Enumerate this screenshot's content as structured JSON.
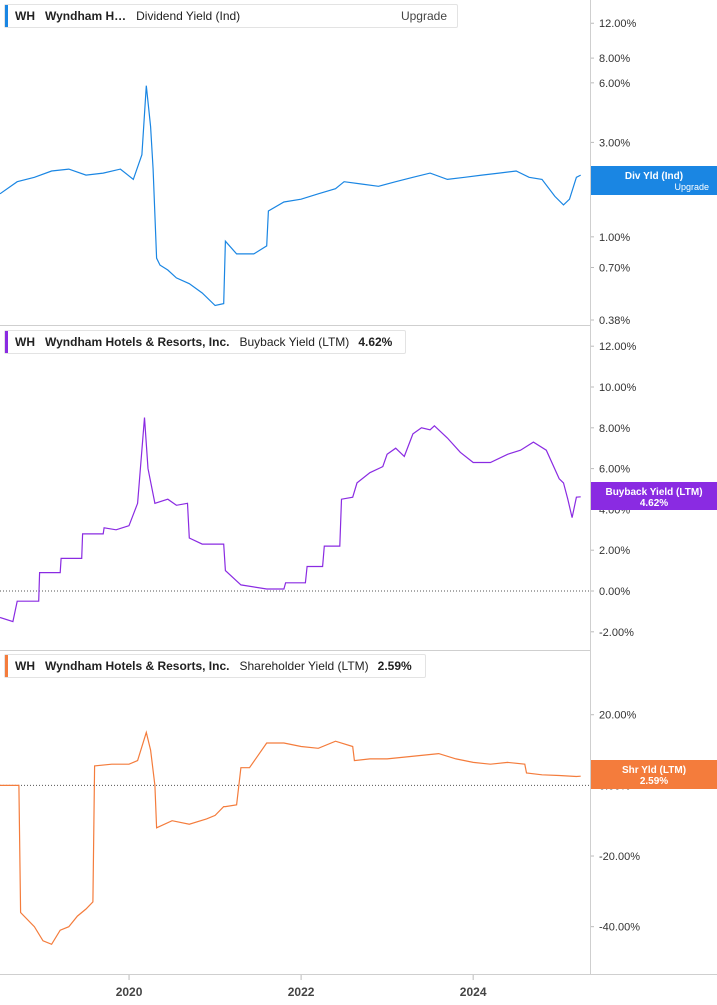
{
  "panels": [
    {
      "ticker": "WH",
      "name": "Wyndham H…",
      "metric": "Dividend Yield (Ind)",
      "value": "",
      "legend_action": "Upgrade",
      "color": "#1a86e3",
      "flag": {
        "label": "Div Yld (Ind)",
        "sub": "Upgrade"
      }
    },
    {
      "ticker": "WH",
      "name": "Wyndham Hotels & Resorts, Inc.",
      "metric": "Buyback Yield (LTM)",
      "value": "4.62%",
      "color": "#8a2be2",
      "flag": {
        "label": "Buyback Yield (LTM)",
        "sub": "4.62%"
      }
    },
    {
      "ticker": "WH",
      "name": "Wyndham Hotels & Resorts, Inc.",
      "metric": "Shareholder Yield (LTM)",
      "value": "2.59%",
      "color": "#f47c3c",
      "flag": {
        "label": "Shr Yld (LTM)",
        "sub": "2.59%"
      }
    }
  ],
  "chart_data": [
    {
      "type": "line",
      "title": "Dividend Yield (Ind)",
      "scale": "log",
      "y_ticks": [
        12,
        8,
        6,
        3,
        1,
        0.7,
        0.38
      ],
      "y_tick_labels": [
        "12.00%",
        "8.00%",
        "6.00%",
        "3.00%",
        "1.00%",
        "0.70%",
        "0.38%"
      ],
      "ylim": [
        0.38,
        14
      ],
      "xlim": [
        2018.5,
        2025.3
      ],
      "color": "#1a86e3",
      "series": [
        {
          "x": [
            2018.5,
            2018.7,
            2018.9,
            2019.1,
            2019.3,
            2019.5,
            2019.7,
            2019.9,
            2020.05,
            2020.15,
            2020.2,
            2020.25,
            2020.28,
            2020.32,
            2020.36,
            2020.45,
            2020.55,
            2020.7,
            2020.85,
            2021.0,
            2021.1,
            2021.12,
            2021.25,
            2021.45,
            2021.6,
            2021.62,
            2021.8,
            2022.0,
            2022.2,
            2022.4,
            2022.5,
            2022.7,
            2022.9,
            2023.1,
            2023.3,
            2023.5,
            2023.7,
            2023.9,
            2024.1,
            2024.3,
            2024.5,
            2024.65,
            2024.8,
            2024.95,
            2025.05,
            2025.12,
            2025.2,
            2025.25
          ],
          "y": [
            1.65,
            1.9,
            2.0,
            2.15,
            2.2,
            2.05,
            2.1,
            2.2,
            1.95,
            2.6,
            5.8,
            3.6,
            2.2,
            0.78,
            0.72,
            0.68,
            0.62,
            0.58,
            0.52,
            0.45,
            0.46,
            0.95,
            0.82,
            0.82,
            0.9,
            1.35,
            1.5,
            1.55,
            1.65,
            1.75,
            1.9,
            1.85,
            1.8,
            1.9,
            2.0,
            2.1,
            1.95,
            2.0,
            2.05,
            2.1,
            2.15,
            2.0,
            1.95,
            1.6,
            1.45,
            1.55,
            2.0,
            2.05
          ]
        }
      ]
    },
    {
      "type": "line",
      "title": "Buyback Yield (LTM)",
      "y_ticks": [
        12,
        10,
        8,
        6,
        4,
        2,
        0,
        -2
      ],
      "y_tick_labels": [
        "12.00%",
        "10.00%",
        "8.00%",
        "6.00%",
        "4.00%",
        "2.00%",
        "0.00%",
        "-2.00%"
      ],
      "ylim": [
        -2.5,
        12.5
      ],
      "xlim": [
        2018.5,
        2025.3
      ],
      "color": "#8a2be2",
      "series": [
        {
          "x": [
            2018.5,
            2018.65,
            2018.7,
            2018.95,
            2018.96,
            2019.2,
            2019.21,
            2019.45,
            2019.46,
            2019.7,
            2019.71,
            2019.85,
            2020.0,
            2020.1,
            2020.18,
            2020.22,
            2020.3,
            2020.45,
            2020.55,
            2020.68,
            2020.7,
            2020.85,
            2021.1,
            2021.12,
            2021.3,
            2021.6,
            2021.62,
            2021.8,
            2021.82,
            2022.05,
            2022.07,
            2022.25,
            2022.27,
            2022.45,
            2022.47,
            2022.6,
            2022.65,
            2022.8,
            2022.95,
            2023.0,
            2023.1,
            2023.2,
            2023.3,
            2023.4,
            2023.5,
            2023.55,
            2023.7,
            2023.85,
            2024.0,
            2024.2,
            2024.4,
            2024.55,
            2024.7,
            2024.85,
            2025.0,
            2025.05,
            2025.1,
            2025.15,
            2025.2,
            2025.25
          ],
          "y": [
            -1.3,
            -1.5,
            -0.5,
            -0.5,
            0.9,
            0.9,
            1.6,
            1.6,
            2.8,
            2.8,
            3.1,
            3.0,
            3.2,
            4.3,
            8.5,
            6.0,
            4.3,
            4.5,
            4.2,
            4.3,
            2.6,
            2.3,
            2.3,
            1.0,
            0.3,
            0.1,
            0.1,
            0.1,
            0.4,
            0.4,
            1.2,
            1.2,
            2.2,
            2.2,
            4.5,
            4.6,
            5.3,
            5.8,
            6.1,
            6.7,
            7.0,
            6.6,
            7.7,
            8.0,
            7.9,
            8.1,
            7.5,
            6.8,
            6.3,
            6.3,
            6.7,
            6.9,
            7.3,
            6.9,
            5.5,
            5.3,
            4.5,
            3.6,
            4.6,
            4.62
          ]
        }
      ]
    },
    {
      "type": "line",
      "title": "Shareholder Yield (LTM)",
      "y_ticks": [
        20,
        0,
        -20,
        -40
      ],
      "y_tick_labels": [
        "20.00%",
        "0.00%",
        "-20.00%",
        "-40.00%"
      ],
      "ylim": [
        -50,
        27
      ],
      "xlim": [
        2018.5,
        2025.3
      ],
      "x_ticks": [
        2020,
        2022,
        2024
      ],
      "x_tick_labels": [
        "2020",
        "2022",
        "2024"
      ],
      "color": "#f47c3c",
      "series": [
        {
          "x": [
            2018.5,
            2018.72,
            2018.74,
            2018.9,
            2019.0,
            2019.1,
            2019.2,
            2019.3,
            2019.4,
            2019.5,
            2019.58,
            2019.6,
            2019.8,
            2020.0,
            2020.1,
            2020.2,
            2020.25,
            2020.3,
            2020.32,
            2020.5,
            2020.7,
            2020.9,
            2021.0,
            2021.1,
            2021.12,
            2021.25,
            2021.3,
            2021.4,
            2021.6,
            2021.8,
            2022.0,
            2022.2,
            2022.4,
            2022.6,
            2022.62,
            2022.8,
            2023.0,
            2023.2,
            2023.4,
            2023.6,
            2023.8,
            2024.0,
            2024.2,
            2024.4,
            2024.6,
            2024.62,
            2024.8,
            2025.0,
            2025.2,
            2025.25
          ],
          "y": [
            0,
            0,
            -36,
            -40,
            -44,
            -45,
            -41,
            -40,
            -37,
            -35,
            -33,
            5.5,
            6,
            6,
            7,
            15,
            10,
            0,
            -12,
            -10,
            -11,
            -9.5,
            -8.5,
            -6,
            -6,
            -5.5,
            5,
            5,
            12,
            12,
            11,
            10.5,
            12.5,
            11,
            7,
            7.5,
            7.5,
            8,
            8.5,
            9,
            7.5,
            6.5,
            6,
            6.5,
            6,
            3.5,
            3,
            2.8,
            2.5,
            2.59
          ]
        }
      ]
    }
  ]
}
